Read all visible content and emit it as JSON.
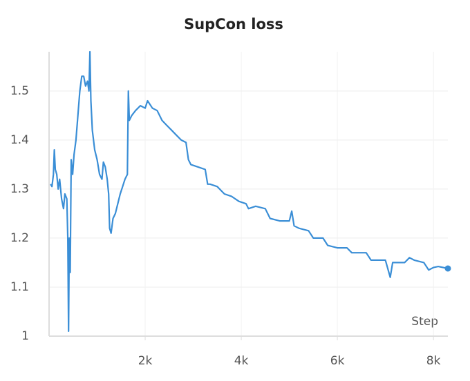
{
  "chart_data": {
    "type": "line",
    "title": "SupCon loss",
    "x_label": "Step",
    "xlim": [
      0,
      8300
    ],
    "ylim": [
      1,
      1.58
    ],
    "xticks": [
      {
        "value": 2000,
        "label": "2k"
      },
      {
        "value": 4000,
        "label": "4k"
      },
      {
        "value": 6000,
        "label": "6k"
      },
      {
        "value": 8000,
        "label": "8k"
      }
    ],
    "yticks": [
      1,
      1.1,
      1.2,
      1.3,
      1.4,
      1.5
    ],
    "grid": true,
    "series": [
      {
        "color": "#3a8ed6",
        "x": [
          30,
          60,
          90,
          110,
          130,
          160,
          190,
          220,
          260,
          300,
          330,
          370,
          390,
          405,
          420,
          440,
          460,
          490,
          520,
          560,
          600,
          640,
          680,
          720,
          760,
          800,
          830,
          850,
          870,
          900,
          950,
          1000,
          1050,
          1100,
          1130,
          1170,
          1210,
          1240,
          1260,
          1290,
          1330,
          1380,
          1430,
          1480,
          1530,
          1580,
          1630,
          1650,
          1670,
          1720,
          1800,
          1900,
          2000,
          2050,
          2150,
          2250,
          2350,
          2450,
          2550,
          2650,
          2750,
          2850,
          2900,
          2950,
          3100,
          3250,
          3300,
          3350,
          3500,
          3650,
          3800,
          3950,
          4100,
          4150,
          4300,
          4500,
          4600,
          4800,
          5000,
          5050,
          5100,
          5200,
          5400,
          5500,
          5700,
          5800,
          6000,
          6200,
          6300,
          6600,
          6700,
          7000,
          7100,
          7150,
          7400,
          7500,
          7600,
          7800,
          7900,
          8000,
          8100,
          8300
        ],
        "values": [
          1.31,
          1.305,
          1.33,
          1.38,
          1.34,
          1.33,
          1.3,
          1.32,
          1.28,
          1.26,
          1.29,
          1.28,
          1.2,
          1.01,
          1.2,
          1.13,
          1.36,
          1.33,
          1.37,
          1.4,
          1.45,
          1.5,
          1.53,
          1.53,
          1.51,
          1.52,
          1.5,
          1.58,
          1.48,
          1.42,
          1.38,
          1.36,
          1.33,
          1.32,
          1.355,
          1.345,
          1.32,
          1.29,
          1.22,
          1.21,
          1.24,
          1.25,
          1.27,
          1.29,
          1.305,
          1.32,
          1.33,
          1.5,
          1.44,
          1.45,
          1.46,
          1.47,
          1.465,
          1.48,
          1.465,
          1.46,
          1.44,
          1.43,
          1.42,
          1.41,
          1.4,
          1.395,
          1.36,
          1.35,
          1.345,
          1.34,
          1.31,
          1.31,
          1.305,
          1.29,
          1.285,
          1.275,
          1.27,
          1.26,
          1.265,
          1.26,
          1.24,
          1.235,
          1.235,
          1.255,
          1.225,
          1.22,
          1.215,
          1.2,
          1.2,
          1.185,
          1.18,
          1.18,
          1.17,
          1.17,
          1.155,
          1.155,
          1.12,
          1.15,
          1.15,
          1.16,
          1.155,
          1.15,
          1.135,
          1.14,
          1.142,
          1.138
        ]
      }
    ]
  }
}
